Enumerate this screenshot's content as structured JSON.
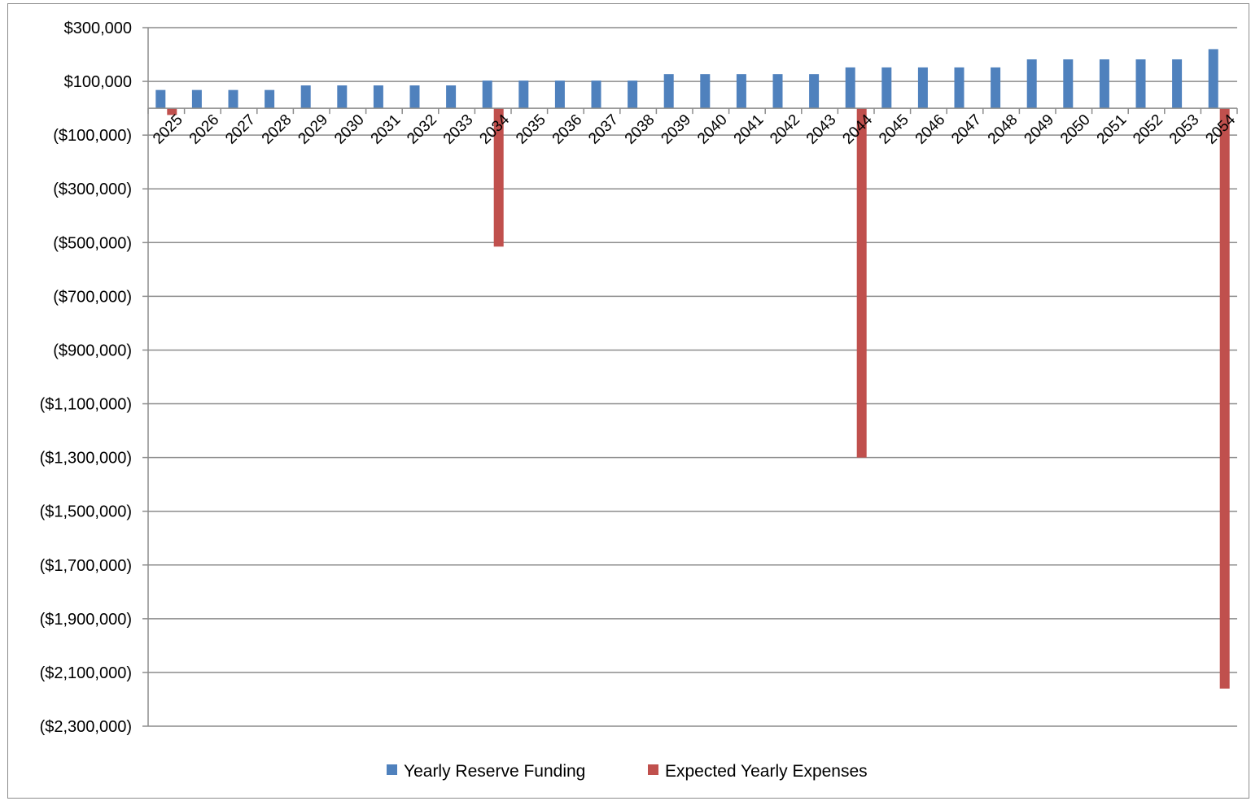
{
  "chart_data": {
    "type": "bar",
    "title": "",
    "xlabel": "",
    "ylabel": "",
    "ylim": [
      -2300000,
      300000
    ],
    "ytick_step": 200000,
    "ytick_labels": [
      "$300,000",
      "$100,000",
      "($100,000)",
      "($300,000)",
      "($500,000)",
      "($700,000)",
      "($900,000)",
      "($1,100,000)",
      "($1,300,000)",
      "($1,500,000)",
      "($1,700,000)",
      "($1,900,000)",
      "($2,100,000)",
      "($2,300,000)"
    ],
    "ytick_values": [
      300000,
      100000,
      -100000,
      -300000,
      -500000,
      -700000,
      -900000,
      -1100000,
      -1300000,
      -1500000,
      -1700000,
      -1900000,
      -2100000,
      -2300000
    ],
    "grid": true,
    "legend_position": "bottom",
    "categories": [
      "2025",
      "2026",
      "2027",
      "2028",
      "2029",
      "2030",
      "2031",
      "2032",
      "2033",
      "2034",
      "2035",
      "2036",
      "2037",
      "2038",
      "2039",
      "2040",
      "2041",
      "2042",
      "2043",
      "2044",
      "2045",
      "2046",
      "2047",
      "2048",
      "2049",
      "2050",
      "2051",
      "2052",
      "2053",
      "2054"
    ],
    "series": [
      {
        "name": "Yearly Reserve Funding",
        "color": "#4f81bd",
        "values": [
          68000,
          68000,
          68000,
          68000,
          85000,
          85000,
          85000,
          85000,
          85000,
          103000,
          103000,
          103000,
          103000,
          103000,
          127000,
          127000,
          127000,
          127000,
          127000,
          152000,
          152000,
          152000,
          152000,
          152000,
          182000,
          182000,
          182000,
          182000,
          182000,
          220000
        ]
      },
      {
        "name": "Expected Yearly Expenses",
        "color": "#c0504d",
        "values": [
          -25000,
          0,
          0,
          0,
          0,
          0,
          0,
          0,
          0,
          -515000,
          0,
          0,
          0,
          0,
          0,
          0,
          0,
          0,
          0,
          -1300000,
          0,
          0,
          0,
          0,
          0,
          0,
          0,
          0,
          0,
          -2160000
        ]
      }
    ]
  }
}
